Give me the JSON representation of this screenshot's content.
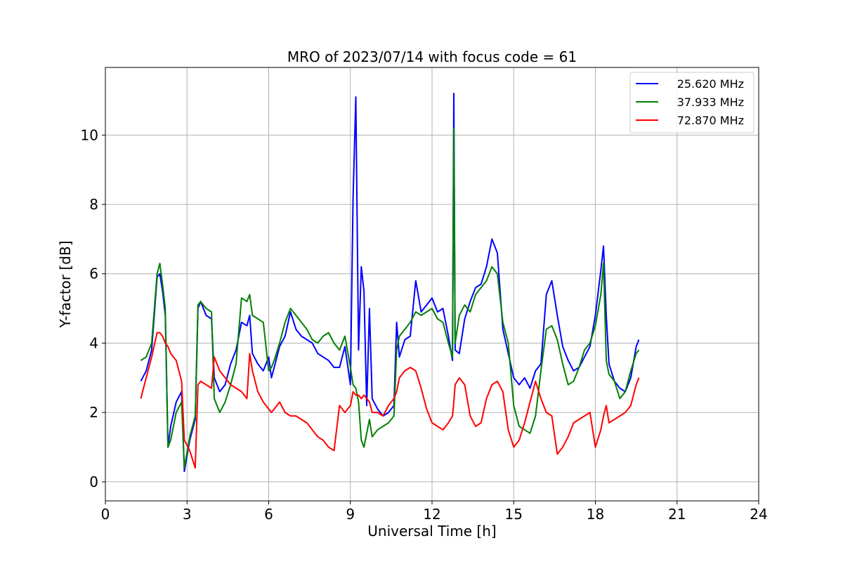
{
  "chart_data": {
    "type": "line",
    "title": "MRO of 2023/07/14 with focus code = 61",
    "xlabel": "Universal Time [h]",
    "ylabel": "Y-factor [dB]",
    "xlim": [
      0,
      24
    ],
    "ylim": [
      -0.55,
      11.95
    ],
    "xticks": [
      0,
      3,
      6,
      9,
      12,
      15,
      18,
      21,
      24
    ],
    "yticks": [
      0,
      2,
      4,
      6,
      8,
      10
    ],
    "grid": true,
    "legend_position": "top-right",
    "colors": {
      "s1": "#0000ff",
      "s2": "#008000",
      "s3": "#ff0000"
    },
    "series": [
      {
        "name": "25.620 MHz",
        "color": "#0000ff",
        "x": [
          1.3,
          1.5,
          1.7,
          1.9,
          2.0,
          2.1,
          2.2,
          2.3,
          2.4,
          2.6,
          2.8,
          2.9,
          3.1,
          3.3,
          3.4,
          3.5,
          3.7,
          3.9,
          4.0,
          4.2,
          4.4,
          4.6,
          4.8,
          5.0,
          5.2,
          5.3,
          5.4,
          5.6,
          5.8,
          6.0,
          6.1,
          6.2,
          6.4,
          6.6,
          6.8,
          7.0,
          7.2,
          7.4,
          7.6,
          7.8,
          8.0,
          8.2,
          8.4,
          8.6,
          8.8,
          9.0,
          9.1,
          9.2,
          9.3,
          9.4,
          9.5,
          9.6,
          9.7,
          9.8,
          10.0,
          10.2,
          10.4,
          10.6,
          10.7,
          10.8,
          11.0,
          11.2,
          11.4,
          11.6,
          11.8,
          12.0,
          12.2,
          12.4,
          12.6,
          12.75,
          12.8,
          12.85,
          13.0,
          13.2,
          13.4,
          13.6,
          13.8,
          14.0,
          14.2,
          14.4,
          14.6,
          14.8,
          15.0,
          15.2,
          15.4,
          15.6,
          15.8,
          16.0,
          16.2,
          16.4,
          16.6,
          16.8,
          17.0,
          17.2,
          17.4,
          17.6,
          17.8,
          18.0,
          18.2,
          18.3,
          18.4,
          18.5,
          18.7,
          18.9,
          19.1,
          19.3,
          19.5,
          19.6
        ],
        "values": [
          2.9,
          3.2,
          3.8,
          5.9,
          6.0,
          5.5,
          4.8,
          1.0,
          1.6,
          2.3,
          2.6,
          0.3,
          1.2,
          1.8,
          5.0,
          5.2,
          4.8,
          4.7,
          3.0,
          2.6,
          2.8,
          3.4,
          3.8,
          4.6,
          4.5,
          4.8,
          3.7,
          3.4,
          3.2,
          3.6,
          3.0,
          3.3,
          3.9,
          4.2,
          4.9,
          4.4,
          4.2,
          4.1,
          4.0,
          3.7,
          3.6,
          3.5,
          3.3,
          3.3,
          3.9,
          2.8,
          8.2,
          11.1,
          3.8,
          6.2,
          5.5,
          2.2,
          5.0,
          2.4,
          2.1,
          1.9,
          2.0,
          2.2,
          4.6,
          3.6,
          4.1,
          4.2,
          5.8,
          4.9,
          5.1,
          5.3,
          4.9,
          5.0,
          4.2,
          3.5,
          11.2,
          3.8,
          3.7,
          4.7,
          5.2,
          5.6,
          5.7,
          6.2,
          7.0,
          6.6,
          4.4,
          3.7,
          3.0,
          2.8,
          3.0,
          2.7,
          3.2,
          3.4,
          5.4,
          5.8,
          4.8,
          3.9,
          3.5,
          3.2,
          3.3,
          3.6,
          3.9,
          4.8,
          6.1,
          6.8,
          4.8,
          3.4,
          2.9,
          2.7,
          2.6,
          3.0,
          3.9,
          4.1
        ]
      },
      {
        "name": "37.933 MHz",
        "color": "#008000",
        "x": [
          1.3,
          1.5,
          1.7,
          1.9,
          2.0,
          2.1,
          2.2,
          2.3,
          2.4,
          2.6,
          2.8,
          2.9,
          3.1,
          3.3,
          3.4,
          3.5,
          3.7,
          3.9,
          4.0,
          4.2,
          4.4,
          4.6,
          4.8,
          5.0,
          5.2,
          5.3,
          5.4,
          5.6,
          5.8,
          6.0,
          6.1,
          6.2,
          6.4,
          6.6,
          6.8,
          7.0,
          7.2,
          7.4,
          7.6,
          7.8,
          8.0,
          8.2,
          8.4,
          8.6,
          8.8,
          9.0,
          9.1,
          9.2,
          9.3,
          9.4,
          9.5,
          9.6,
          9.7,
          9.8,
          10.0,
          10.2,
          10.4,
          10.6,
          10.7,
          10.8,
          11.0,
          11.2,
          11.4,
          11.6,
          11.8,
          12.0,
          12.2,
          12.4,
          12.6,
          12.75,
          12.8,
          12.85,
          13.0,
          13.2,
          13.4,
          13.6,
          13.8,
          14.0,
          14.2,
          14.4,
          14.6,
          14.8,
          15.0,
          15.2,
          15.4,
          15.6,
          15.8,
          16.0,
          16.2,
          16.4,
          16.6,
          16.8,
          17.0,
          17.2,
          17.4,
          17.6,
          17.8,
          18.0,
          18.2,
          18.3,
          18.4,
          18.5,
          18.7,
          18.9,
          19.1,
          19.3,
          19.5,
          19.6
        ],
        "values": [
          3.5,
          3.6,
          4.0,
          6.0,
          6.3,
          5.7,
          5.0,
          1.0,
          1.2,
          2.0,
          2.3,
          0.4,
          1.3,
          1.9,
          5.1,
          5.2,
          5.0,
          4.9,
          2.4,
          2.0,
          2.3,
          2.8,
          3.4,
          5.3,
          5.2,
          5.4,
          4.8,
          4.7,
          4.6,
          3.2,
          3.3,
          3.5,
          4.0,
          4.6,
          5.0,
          4.8,
          4.6,
          4.4,
          4.1,
          4.0,
          4.2,
          4.3,
          4.0,
          3.8,
          4.2,
          3.3,
          2.8,
          2.7,
          2.3,
          1.2,
          1.0,
          1.4,
          1.8,
          1.3,
          1.5,
          1.6,
          1.7,
          1.9,
          3.8,
          4.2,
          4.4,
          4.6,
          4.9,
          4.8,
          4.9,
          5.0,
          4.7,
          4.6,
          4.0,
          3.6,
          10.2,
          4.0,
          4.8,
          5.1,
          4.9,
          5.4,
          5.6,
          5.8,
          6.2,
          6.0,
          4.6,
          4.0,
          2.2,
          1.6,
          1.5,
          1.4,
          1.9,
          3.2,
          4.4,
          4.5,
          4.1,
          3.4,
          2.8,
          2.9,
          3.3,
          3.8,
          4.0,
          4.5,
          5.4,
          6.3,
          3.5,
          3.1,
          2.9,
          2.4,
          2.6,
          3.2,
          3.7,
          3.8
        ]
      },
      {
        "name": "72.870 MHz",
        "color": "#ff0000",
        "x": [
          1.3,
          1.5,
          1.7,
          1.9,
          2.0,
          2.1,
          2.2,
          2.3,
          2.4,
          2.6,
          2.8,
          2.9,
          3.1,
          3.3,
          3.4,
          3.5,
          3.7,
          3.9,
          4.0,
          4.2,
          4.4,
          4.6,
          4.8,
          5.0,
          5.2,
          5.3,
          5.4,
          5.6,
          5.8,
          6.0,
          6.1,
          6.2,
          6.4,
          6.6,
          6.8,
          7.0,
          7.2,
          7.4,
          7.6,
          7.8,
          8.0,
          8.2,
          8.4,
          8.6,
          8.8,
          9.0,
          9.1,
          9.2,
          9.3,
          9.4,
          9.5,
          9.6,
          9.7,
          9.8,
          10.0,
          10.2,
          10.4,
          10.6,
          10.7,
          10.8,
          11.0,
          11.2,
          11.4,
          11.6,
          11.8,
          12.0,
          12.2,
          12.4,
          12.6,
          12.75,
          12.8,
          12.85,
          13.0,
          13.2,
          13.4,
          13.6,
          13.8,
          14.0,
          14.2,
          14.4,
          14.6,
          14.8,
          15.0,
          15.2,
          15.4,
          15.6,
          15.8,
          16.0,
          16.2,
          16.4,
          16.6,
          16.8,
          17.0,
          17.2,
          17.4,
          17.6,
          17.8,
          18.0,
          18.2,
          18.3,
          18.4,
          18.5,
          18.7,
          18.9,
          19.1,
          19.3,
          19.5,
          19.6
        ],
        "values": [
          2.4,
          3.0,
          3.6,
          4.3,
          4.3,
          4.2,
          4.0,
          3.9,
          3.7,
          3.5,
          2.9,
          1.2,
          0.9,
          0.4,
          2.8,
          2.9,
          2.8,
          2.7,
          3.6,
          3.2,
          3.0,
          2.8,
          2.7,
          2.6,
          2.4,
          3.7,
          3.2,
          2.6,
          2.3,
          2.1,
          2.0,
          2.1,
          2.3,
          2.0,
          1.9,
          1.9,
          1.8,
          1.7,
          1.5,
          1.3,
          1.2,
          1.0,
          0.9,
          2.2,
          2.0,
          2.2,
          2.6,
          2.5,
          2.5,
          2.4,
          2.5,
          2.4,
          2.3,
          2.0,
          2.0,
          1.9,
          2.2,
          2.4,
          2.6,
          3.0,
          3.2,
          3.3,
          3.2,
          2.7,
          2.1,
          1.7,
          1.6,
          1.5,
          1.7,
          1.9,
          2.3,
          2.8,
          3.0,
          2.8,
          1.9,
          1.6,
          1.7,
          2.4,
          2.8,
          2.9,
          2.6,
          1.5,
          1.0,
          1.2,
          1.7,
          2.3,
          2.9,
          2.4,
          2.0,
          1.9,
          0.8,
          1.0,
          1.3,
          1.7,
          1.8,
          1.9,
          2.0,
          1.0,
          1.5,
          1.9,
          2.2,
          1.7,
          1.8,
          1.9,
          2.0,
          2.2,
          2.8,
          3.0
        ]
      }
    ]
  }
}
